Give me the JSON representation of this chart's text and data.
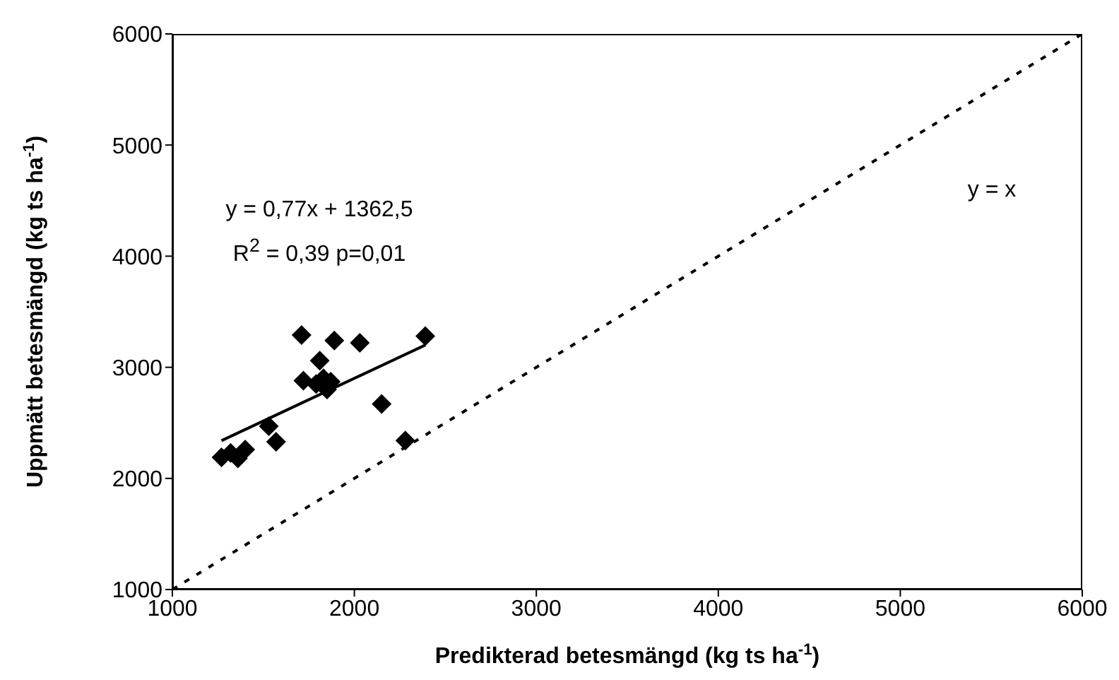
{
  "chart_data": {
    "type": "scatter",
    "xlabel": "Predikterad betesmängd (kg ts ha$^{-1}$)",
    "ylabel": "Uppmätt betesmängd (kg ts ha$^{-1}$)",
    "xlim": [
      1000,
      6000
    ],
    "xticks": [
      1000,
      2000,
      3000,
      4000,
      5000,
      6000
    ],
    "ylim": [
      1000,
      6000
    ],
    "yticks": [
      1000,
      2000,
      3000,
      4000,
      5000,
      6000
    ],
    "series": [
      {
        "color": "#000000",
        "marker": "diamond",
        "x": [
          1270,
          1320,
          1360,
          1400,
          1530,
          1570,
          1710,
          1720,
          1790,
          1810,
          1830,
          1850,
          1870,
          1890,
          2030,
          2150,
          2280,
          2390
        ],
        "values": [
          2190,
          2230,
          2180,
          2260,
          2470,
          2330,
          3290,
          2880,
          2850,
          3060,
          2900,
          2800,
          2870,
          3240,
          3220,
          2670,
          2340,
          3280
        ]
      },
      {
        "type": "line",
        "color": "#000000",
        "line_style": "solid",
        "marker": "none",
        "x": [
          1270,
          2390
        ],
        "values": [
          2340,
          3200
        ]
      },
      {
        "type": "line",
        "color": "#000000",
        "line_style": "dotted",
        "marker": "none",
        "x": [
          1000,
          6000
        ],
        "values": [
          1000,
          6000
        ]
      }
    ],
    "annotations": [
      "y = 0,77x + 1362,5",
      "R$^{2}$ = 0,39  p=0,01",
      "y = x"
    ]
  }
}
